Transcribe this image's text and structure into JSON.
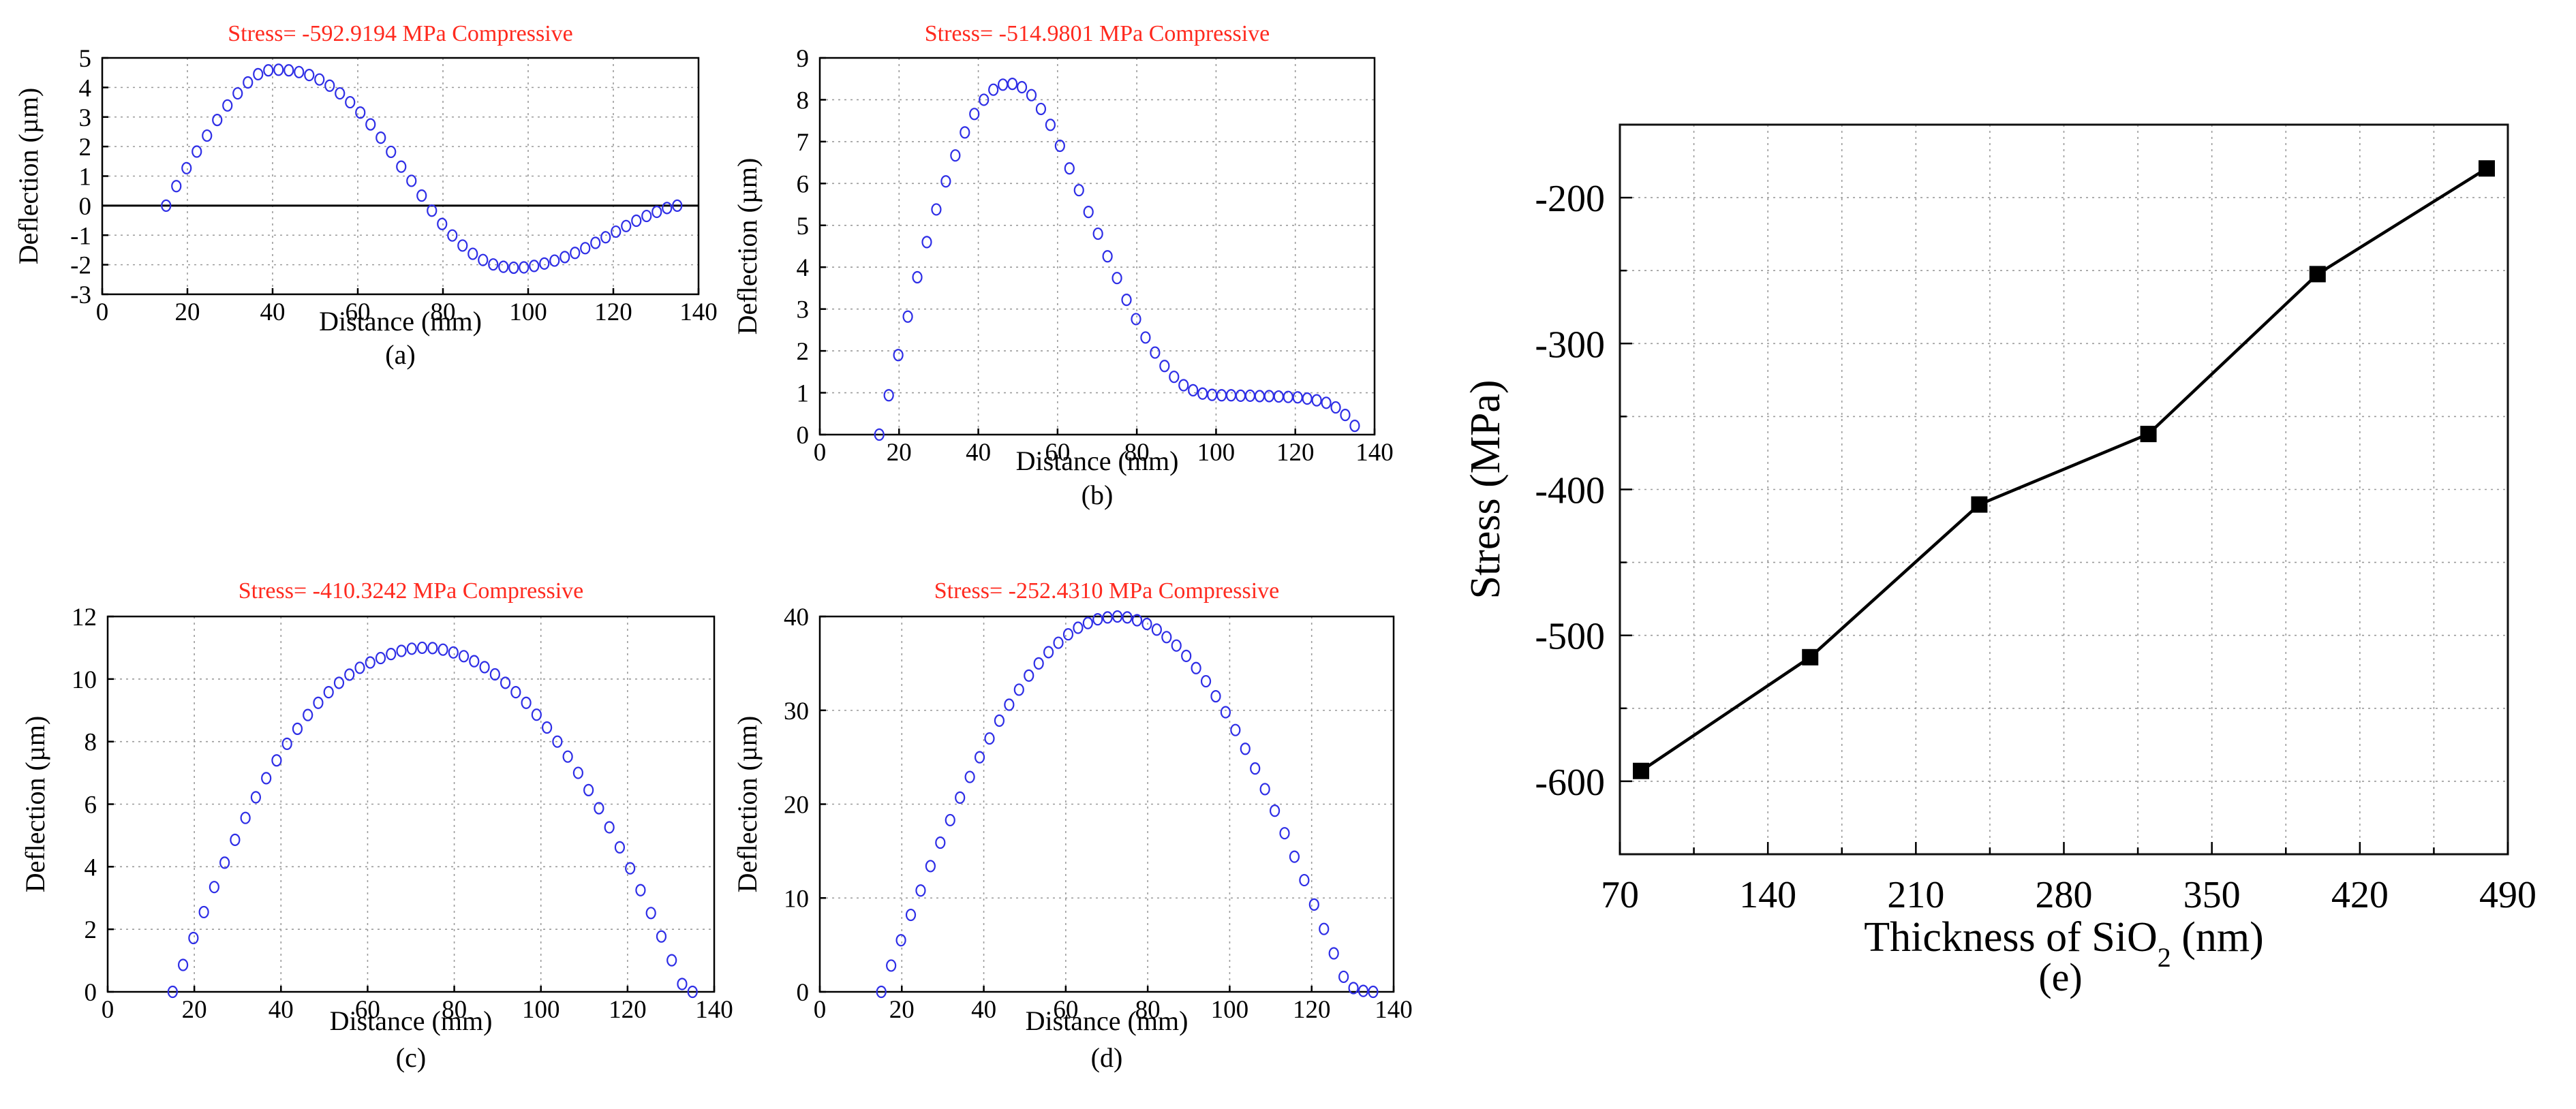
{
  "chart_data": [
    {
      "id": "a",
      "type": "scatter",
      "title": "Stress= -592.9194 MPa Compressive",
      "xlabel": "Distance (mm)",
      "ylabel": "Deflection (µm)",
      "caption": "(a)",
      "xlim": [
        0,
        140
      ],
      "ylim": [
        -3,
        5
      ],
      "xticks": [
        "0",
        "20",
        "40",
        "60",
        "80",
        "100",
        "120",
        "140"
      ],
      "yticks": [
        "-3",
        "-2",
        "-1",
        "0",
        "1",
        "2",
        "3",
        "4",
        "5"
      ],
      "zero_line": true,
      "grid": true,
      "x": [
        15,
        17.4,
        19.8,
        22.2,
        24.6,
        27,
        29.4,
        31.8,
        34.2,
        36.6,
        39,
        41.4,
        43.8,
        46.2,
        48.6,
        51,
        53.4,
        55.8,
        58.2,
        60.6,
        63,
        65.4,
        67.8,
        70.2,
        72.6,
        75,
        77.4,
        79.8,
        82.2,
        84.6,
        87,
        89.4,
        91.8,
        94.2,
        96.6,
        99,
        101.4,
        103.8,
        106.2,
        108.6,
        111,
        113.4,
        115.8,
        118.2,
        120.6,
        123,
        125.4,
        127.8,
        130.2,
        132.6,
        135
      ],
      "y": [
        0,
        0.66,
        1.27,
        1.83,
        2.37,
        2.9,
        3.39,
        3.8,
        4.17,
        4.45,
        4.58,
        4.6,
        4.58,
        4.52,
        4.42,
        4.27,
        4.06,
        3.8,
        3.5,
        3.15,
        2.75,
        2.3,
        1.82,
        1.32,
        0.84,
        0.34,
        -0.17,
        -0.62,
        -1.01,
        -1.35,
        -1.63,
        -1.84,
        -1.99,
        -2.07,
        -2.1,
        -2.09,
        -2.04,
        -1.96,
        -1.86,
        -1.74,
        -1.6,
        -1.44,
        -1.26,
        -1.07,
        -0.88,
        -0.69,
        -0.51,
        -0.35,
        -0.21,
        -0.08,
        0
      ]
    },
    {
      "id": "b",
      "type": "scatter",
      "title": "Stress= -514.9801 MPa Compressive",
      "xlabel": "Distance (mm)",
      "ylabel": "Deflection (µm)",
      "caption": "(b)",
      "xlim": [
        0,
        140
      ],
      "ylim": [
        0,
        9
      ],
      "xticks": [
        "0",
        "20",
        "40",
        "60",
        "80",
        "100",
        "120",
        "140"
      ],
      "yticks": [
        "0",
        "1",
        "2",
        "3",
        "4",
        "5",
        "6",
        "7",
        "8",
        "9"
      ],
      "zero_line": false,
      "grid": true,
      "x": [
        15,
        17.4,
        19.8,
        22.2,
        24.6,
        27,
        29.4,
        31.8,
        34.2,
        36.6,
        39,
        41.4,
        43.8,
        46.2,
        48.6,
        51,
        53.4,
        55.8,
        58.2,
        60.6,
        63,
        65.4,
        67.8,
        70.2,
        72.6,
        75,
        77.4,
        79.8,
        82.2,
        84.6,
        87,
        89.4,
        91.8,
        94.2,
        96.6,
        99,
        101.4,
        103.8,
        106.2,
        108.6,
        111,
        113.4,
        115.8,
        118.2,
        120.6,
        123,
        125.4,
        127.8,
        130.2,
        132.6,
        135
      ],
      "y": [
        0,
        0.94,
        1.9,
        2.82,
        3.76,
        4.6,
        5.38,
        6.05,
        6.67,
        7.22,
        7.66,
        8,
        8.24,
        8.36,
        8.38,
        8.3,
        8.11,
        7.78,
        7.4,
        6.9,
        6.36,
        5.84,
        5.32,
        4.8,
        4.26,
        3.74,
        3.22,
        2.76,
        2.32,
        1.96,
        1.64,
        1.38,
        1.18,
        1.06,
        0.98,
        0.95,
        0.94,
        0.94,
        0.93,
        0.93,
        0.92,
        0.92,
        0.91,
        0.9,
        0.89,
        0.86,
        0.82,
        0.76,
        0.65,
        0.47,
        0.21
      ]
    },
    {
      "id": "c",
      "type": "scatter",
      "title": "Stress= -410.3242 MPa Compressive",
      "xlabel": "Distance (mm)",
      "ylabel": "Deflection (µm)",
      "caption": "(c)",
      "xlim": [
        0,
        140
      ],
      "ylim": [
        0,
        12
      ],
      "xticks": [
        "0",
        "20",
        "40",
        "60",
        "80",
        "100",
        "120",
        "140"
      ],
      "yticks": [
        "0",
        "2",
        "4",
        "6",
        "8",
        "10",
        "12"
      ],
      "zero_line": false,
      "grid": true,
      "x": [
        15,
        17.4,
        19.8,
        22.2,
        24.6,
        27,
        29.4,
        31.8,
        34.2,
        36.6,
        39,
        41.4,
        43.8,
        46.2,
        48.6,
        51,
        53.4,
        55.8,
        58.2,
        60.6,
        63,
        65.4,
        67.8,
        70.2,
        72.6,
        75,
        77.4,
        79.8,
        82.2,
        84.6,
        87,
        89.4,
        91.8,
        94.2,
        96.6,
        99,
        101.4,
        103.8,
        106.2,
        108.6,
        111,
        113.4,
        115.8,
        118.2,
        120.6,
        123,
        125.4,
        127.8,
        130.2,
        132.6,
        135
      ],
      "y": [
        0,
        0.86,
        1.72,
        2.55,
        3.35,
        4.13,
        4.86,
        5.56,
        6.22,
        6.83,
        7.4,
        7.93,
        8.41,
        8.85,
        9.24,
        9.58,
        9.88,
        10.14,
        10.36,
        10.53,
        10.67,
        10.8,
        10.9,
        10.97,
        11.0,
        10.99,
        10.94,
        10.85,
        10.73,
        10.57,
        10.38,
        10.15,
        9.88,
        9.58,
        9.24,
        8.86,
        8.45,
        8.0,
        7.52,
        7.0,
        6.45,
        5.87,
        5.26,
        4.62,
        3.95,
        3.25,
        2.52,
        1.77,
        1.01,
        0.25,
        0
      ]
    },
    {
      "id": "d",
      "type": "scatter",
      "title": "Stress= -252.4310 MPa Compressive",
      "xlabel": "Distance (mm)",
      "ylabel": "Deflection (µm)",
      "caption": "(d)",
      "xlim": [
        0,
        140
      ],
      "ylim": [
        0,
        40
      ],
      "xticks": [
        "0",
        "20",
        "40",
        "60",
        "80",
        "100",
        "120",
        "140"
      ],
      "yticks": [
        "0",
        "10",
        "20",
        "30",
        "40"
      ],
      "zero_line": false,
      "grid": true,
      "x": [
        15,
        17.4,
        19.8,
        22.2,
        24.6,
        27,
        29.4,
        31.8,
        34.2,
        36.6,
        39,
        41.4,
        43.8,
        46.2,
        48.6,
        51,
        53.4,
        55.8,
        58.2,
        60.6,
        63,
        65.4,
        67.8,
        70.2,
        72.6,
        75,
        77.4,
        79.8,
        82.2,
        84.6,
        87,
        89.4,
        91.8,
        94.2,
        96.6,
        99,
        101.4,
        103.8,
        106.2,
        108.6,
        111,
        113.4,
        115.8,
        118.2,
        120.6,
        123,
        125.4,
        127.8,
        130.2,
        132.6,
        135
      ],
      "y": [
        0,
        2.8,
        5.5,
        8.2,
        10.8,
        13.4,
        15.9,
        18.3,
        20.7,
        22.9,
        25.0,
        27.0,
        28.9,
        30.6,
        32.2,
        33.7,
        35.0,
        36.2,
        37.2,
        38.1,
        38.8,
        39.3,
        39.7,
        39.9,
        40.0,
        39.9,
        39.6,
        39.2,
        38.6,
        37.8,
        36.9,
        35.8,
        34.5,
        33.1,
        31.5,
        29.8,
        27.9,
        25.9,
        23.8,
        21.6,
        19.3,
        16.9,
        14.4,
        11.9,
        9.3,
        6.7,
        4.1,
        1.6,
        0.4,
        0.1,
        0
      ]
    },
    {
      "id": "e",
      "type": "line",
      "title": "",
      "xlabel_main": "Thickness of SiO",
      "xlabel_sub": "2",
      "xlabel_tail": " (nm)",
      "ylabel": "Stress (MPa)",
      "caption": "(e)",
      "xlim": [
        70,
        490
      ],
      "ylim": [
        -650,
        -150
      ],
      "xticks": [
        "70",
        "140",
        "210",
        "280",
        "350",
        "420",
        "490"
      ],
      "yticks": [
        "-200",
        "-300",
        "-400",
        "-500",
        "-600"
      ],
      "grid": true,
      "marker": "square",
      "x": [
        80,
        160,
        240,
        320,
        400,
        480
      ],
      "y": [
        -592.9194,
        -514.9801,
        -410.3242,
        -362,
        -252.431,
        -180
      ]
    }
  ]
}
